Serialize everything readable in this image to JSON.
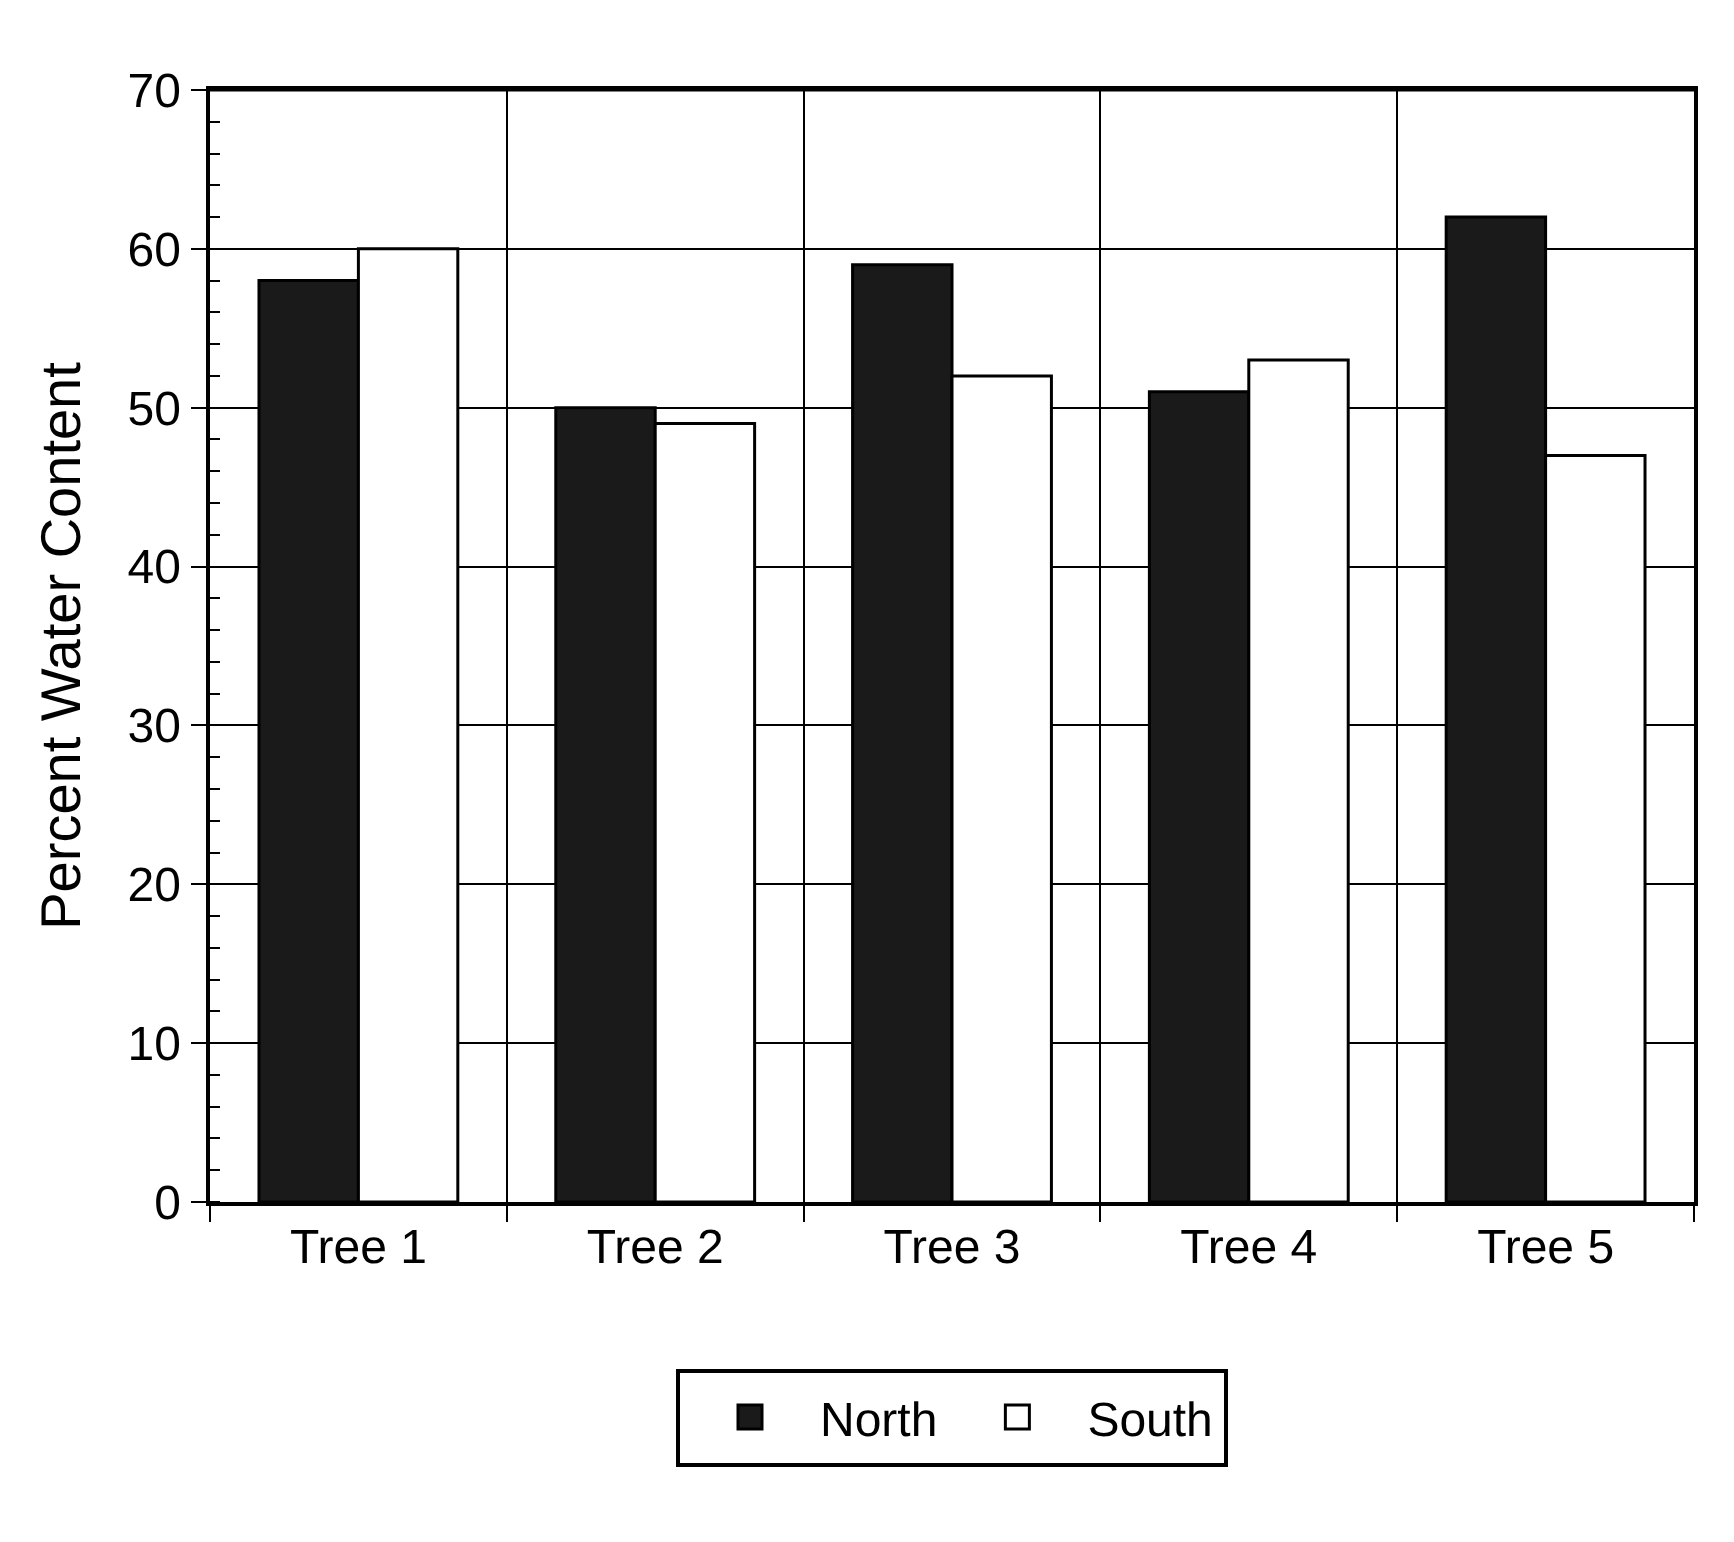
{
  "chart_data": {
    "type": "bar",
    "ylabel": "Percent Water Content",
    "categories": [
      "Tree 1",
      "Tree 2",
      "Tree 3",
      "Tree 4",
      "Tree 5"
    ],
    "series": [
      {
        "name": "North",
        "color": "#1a1a1a",
        "values": [
          58,
          50,
          59,
          51,
          62
        ]
      },
      {
        "name": "South",
        "color": "#ffffff",
        "values": [
          60,
          49,
          52,
          53,
          47
        ]
      }
    ],
    "ylim": [
      0,
      70
    ],
    "yticks": [
      0,
      10,
      20,
      30,
      40,
      50,
      60,
      70
    ],
    "grid": true,
    "legend": "bottom"
  }
}
